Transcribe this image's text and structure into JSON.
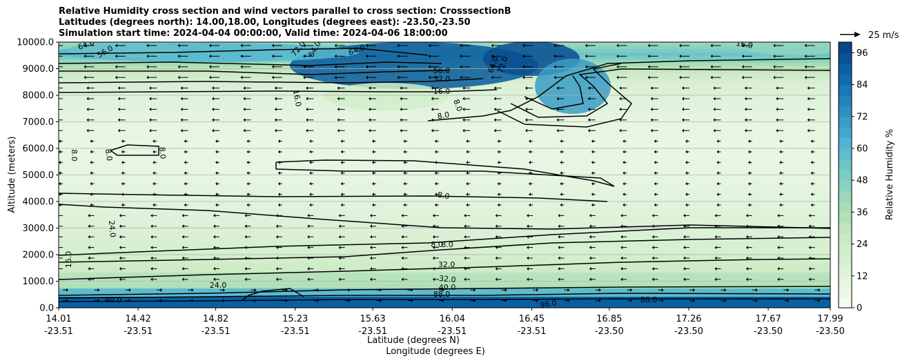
{
  "chart_data": {
    "type": "heatmap",
    "title_lines": [
      "Relative Humidity cross section and wind vectors parallel to cross section: CrosssectionB",
      "Latitudes (degrees north): 14.00,18.00, Longitudes (degrees east): -23.50,-23.50",
      "Simulation start time: 2024-04-04 00:00:00, Valid time: 2024-04-06 18:00:00"
    ],
    "ylabel": "Altitude (meters)",
    "xlabel_lat": "Latitude (degrees N)",
    "xlabel_lon": "Longitude (degrees E)",
    "ylim": [
      0,
      10000
    ],
    "y_ticks": [
      "0.0",
      "1000.0",
      "2000.0",
      "3000.0",
      "4000.0",
      "5000.0",
      "6000.0",
      "7000.0",
      "8000.0",
      "9000.0",
      "10000.0"
    ],
    "x_ticks": [
      {
        "lat": "14.01",
        "lon": "-23.51"
      },
      {
        "lat": "14.42",
        "lon": "-23.51"
      },
      {
        "lat": "14.82",
        "lon": "-23.51"
      },
      {
        "lat": "15.23",
        "lon": "-23.51"
      },
      {
        "lat": "15.63",
        "lon": "-23.51"
      },
      {
        "lat": "16.04",
        "lon": "-23.51"
      },
      {
        "lat": "16.45",
        "lon": "-23.51"
      },
      {
        "lat": "16.85",
        "lon": "-23.50"
      },
      {
        "lat": "17.26",
        "lon": "-23.50"
      },
      {
        "lat": "17.67",
        "lon": "-23.50"
      },
      {
        "lat": "17.99",
        "lon": "-23.50"
      }
    ],
    "xlim": [
      14.01,
      17.99
    ],
    "grid": "horizontal",
    "colorbar": {
      "label": "Relative Humidity %",
      "min": 0,
      "max": 100,
      "ticks": [
        "0",
        "12",
        "24",
        "36",
        "48",
        "60",
        "72",
        "84",
        "96"
      ],
      "colormap": "GnBu",
      "colors": [
        "#f7fcf0",
        "#e0f3db",
        "#ccebc5",
        "#a8ddb5",
        "#7bccc4",
        "#4eb3d3",
        "#2b8cbe",
        "#0868ac",
        "#084081"
      ]
    },
    "wind_key": "25 m/s",
    "contour_labels": [
      "8.0",
      "16.0",
      "24.0",
      "32.0",
      "40.0",
      "48.0",
      "56.0",
      "64.0",
      "72.0",
      "80.0",
      "88.0",
      "96.0"
    ],
    "profile": [
      {
        "alt": 10000,
        "rh": 40
      },
      {
        "alt": 9500,
        "rh": 55
      },
      {
        "alt": 9000,
        "rh": 30
      },
      {
        "alt": 8500,
        "rh": 18
      },
      {
        "alt": 8000,
        "rh": 14
      },
      {
        "alt": 7000,
        "rh": 9
      },
      {
        "alt": 6000,
        "rh": 8
      },
      {
        "alt": 5000,
        "rh": 9
      },
      {
        "alt": 4000,
        "rh": 12
      },
      {
        "alt": 3000,
        "rh": 15
      },
      {
        "alt": 2000,
        "rh": 20
      },
      {
        "alt": 1000,
        "rh": 28
      },
      {
        "alt": 500,
        "rh": 45
      },
      {
        "alt": 0,
        "rh": 85
      }
    ]
  }
}
